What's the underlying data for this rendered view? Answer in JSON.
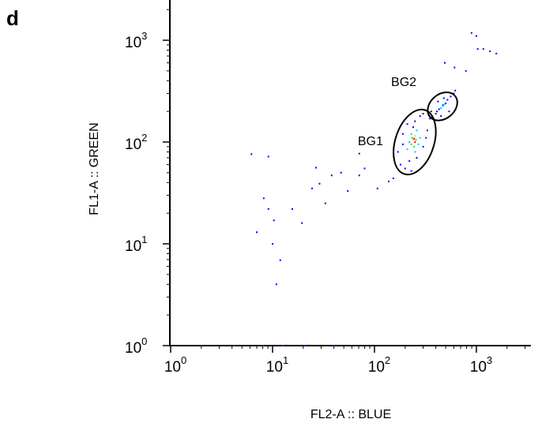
{
  "chart_data": {
    "type": "scatter",
    "panel_label": "d",
    "x_label": "FL2-A :: BLUE",
    "y_label": "FL1-A :: GREEN",
    "xscale": "log",
    "yscale": "log",
    "xlim": [
      1,
      3430
    ],
    "ylim": [
      1,
      2485
    ],
    "xticks": [
      {
        "value": 1,
        "label": "10",
        "exponent": "0"
      },
      {
        "value": 10,
        "label": "10",
        "exponent": "1"
      },
      {
        "value": 100,
        "label": "10",
        "exponent": "2"
      },
      {
        "value": 1000,
        "label": "10",
        "exponent": "3"
      }
    ],
    "yticks": [
      {
        "value": 1,
        "label": "10",
        "exponent": "0"
      },
      {
        "value": 10,
        "label": "10",
        "exponent": "1"
      },
      {
        "value": 100,
        "label": "10",
        "exponent": "2"
      },
      {
        "value": 1000,
        "label": "10",
        "exponent": "3"
      }
    ],
    "series": [
      {
        "color": "#0000ff",
        "x": [
          6.2,
          9.1,
          8.2,
          9.1,
          10.3,
          7.0,
          10,
          11.9,
          10.9,
          15.6,
          19.4,
          24.4,
          26.7,
          28.9,
          33,
          38,
          47,
          54.7,
          71,
          80,
          107,
          138,
          153,
          71,
          2.0,
          4.2,
          8.1,
          12.6,
          20.4,
          40,
          897,
          1000,
          1170,
          1360,
          1570,
          1030,
          610,
          790,
          490,
          400,
          430,
          470,
          520,
          560,
          450,
          500,
          380,
          420,
          600,
          540,
          480,
          410,
          620,
          360,
          180,
          200,
          220,
          260,
          300,
          330,
          350,
          300,
          250,
          190,
          170,
          210,
          280,
          320,
          230,
          190,
          360,
          240
        ],
        "y": [
          76,
          72,
          28,
          22,
          17,
          13,
          10,
          6.9,
          4.0,
          22,
          16,
          35,
          56,
          39,
          25,
          47,
          50,
          33,
          47,
          55,
          35,
          41,
          44,
          77,
          1,
          1,
          1,
          1,
          1,
          1,
          1180,
          1100,
          820,
          780,
          740,
          820,
          540,
          500,
          600,
          190,
          210,
          230,
          260,
          280,
          180,
          240,
          170,
          250,
          300,
          200,
          270,
          200,
          320,
          175,
          60,
          55,
          65,
          70,
          90,
          130,
          170,
          190,
          160,
          120,
          80,
          150,
          180,
          110,
          52,
          95,
          200,
          140
        ]
      },
      {
        "color": "#00c8ff",
        "x": [
          450,
          470,
          490,
          210,
          230,
          260,
          280,
          220,
          250,
          270
        ],
        "y": [
          215,
          225,
          235,
          85,
          120,
          130,
          110,
          100,
          80,
          95
        ]
      },
      {
        "color": "#30d030",
        "x": [
          235,
          255,
          245,
          230
        ],
        "y": [
          110,
          105,
          90,
          95
        ]
      },
      {
        "color": "#f0e000",
        "x": [
          240,
          250
        ],
        "y": [
          105,
          115
        ]
      },
      {
        "color": "#ff0000",
        "x": [
          245,
          250
        ],
        "y": [
          108,
          100
        ]
      }
    ],
    "gates": [
      {
        "label": "BG1",
        "center": [
          248,
          100
        ],
        "radii_decades": [
          0.19,
          0.33
        ],
        "angle": 18
      },
      {
        "label": "BG2",
        "center": [
          465,
          224
        ],
        "radii_decades": [
          0.16,
          0.12
        ],
        "angle": -40
      }
    ]
  }
}
